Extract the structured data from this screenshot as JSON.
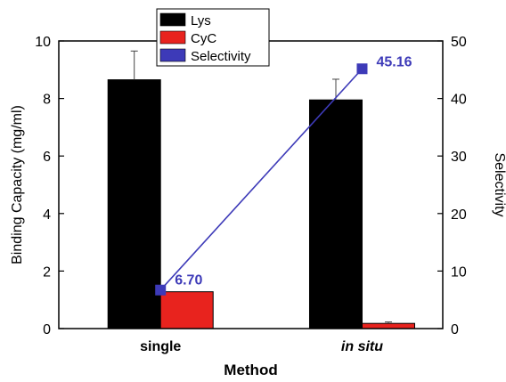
{
  "chart_data": {
    "type": "bar",
    "categories": [
      "single",
      "in situ"
    ],
    "category_italic": [
      false,
      true
    ],
    "xlabel": "Method",
    "ylabel": "Binding Capacity (mg/ml)",
    "ylabel_right": "Selectivity",
    "ylim": [
      0,
      10
    ],
    "ylim_right": [
      0,
      50
    ],
    "yticks": [
      0,
      2,
      4,
      6,
      8,
      10
    ],
    "yticks_right": [
      0,
      10,
      20,
      30,
      40,
      50
    ],
    "legend_position": "top-center",
    "grid": false,
    "series": [
      {
        "name": "Lys",
        "type": "bar",
        "axis": "left",
        "color": "#000000",
        "values": [
          8.65,
          7.95
        ],
        "errors": [
          1.0,
          0.72
        ]
      },
      {
        "name": "CyC",
        "type": "bar",
        "axis": "left",
        "color": "#e8231e",
        "values": [
          1.28,
          0.18
        ],
        "errors": [
          0,
          0.05
        ]
      },
      {
        "name": "Selectivity",
        "type": "line",
        "axis": "right",
        "color": "#3d3ab8",
        "values": [
          6.7,
          45.16
        ],
        "labels": [
          "6.70",
          "45.16"
        ]
      }
    ]
  }
}
